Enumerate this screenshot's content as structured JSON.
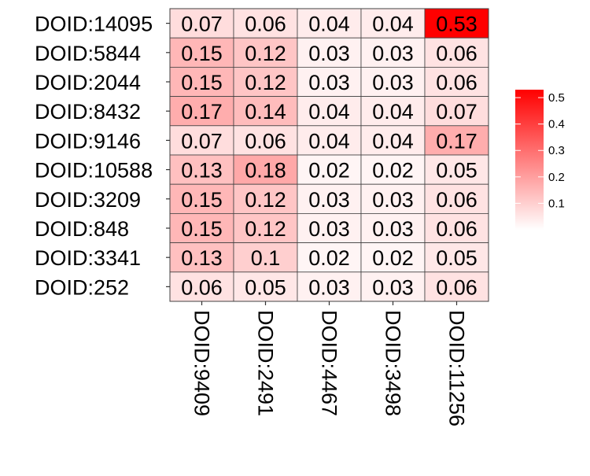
{
  "chart_data": {
    "type": "heatmap",
    "title": "",
    "xlabel": "",
    "ylabel": "",
    "rows": [
      "DOID:14095",
      "DOID:5844",
      "DOID:2044",
      "DOID:8432",
      "DOID:9146",
      "DOID:10588",
      "DOID:3209",
      "DOID:848",
      "DOID:3341",
      "DOID:252"
    ],
    "columns": [
      "DOID:9409",
      "DOID:2491",
      "DOID:4467",
      "DOID:3498",
      "DOID:11256"
    ],
    "values": [
      [
        "0.07",
        "0.06",
        "0.04",
        "0.04",
        "0.53"
      ],
      [
        "0.15",
        "0.12",
        "0.03",
        "0.03",
        "0.06"
      ],
      [
        "0.15",
        "0.12",
        "0.03",
        "0.03",
        "0.06"
      ],
      [
        "0.17",
        "0.14",
        "0.04",
        "0.04",
        "0.07"
      ],
      [
        "0.07",
        "0.06",
        "0.04",
        "0.04",
        "0.17"
      ],
      [
        "0.13",
        "0.18",
        "0.02",
        "0.02",
        "0.05"
      ],
      [
        "0.15",
        "0.12",
        "0.03",
        "0.03",
        "0.06"
      ],
      [
        "0.15",
        "0.12",
        "0.03",
        "0.03",
        "0.06"
      ],
      [
        "0.13",
        "0.1",
        "0.02",
        "0.02",
        "0.05"
      ],
      [
        "0.06",
        "0.05",
        "0.03",
        "0.03",
        "0.06"
      ]
    ],
    "color_scale": {
      "low_color": "#ffffff",
      "high_color": "#ff0000",
      "range": [
        0,
        0.53
      ]
    },
    "legend": {
      "placement": "right",
      "ticks": [
        "0.1",
        "0.2",
        "0.3",
        "0.4",
        "0.5"
      ],
      "tick_values": [
        0.1,
        0.2,
        0.3,
        0.4,
        0.5
      ]
    },
    "grid": false,
    "cell_border_color": "#404040"
  }
}
